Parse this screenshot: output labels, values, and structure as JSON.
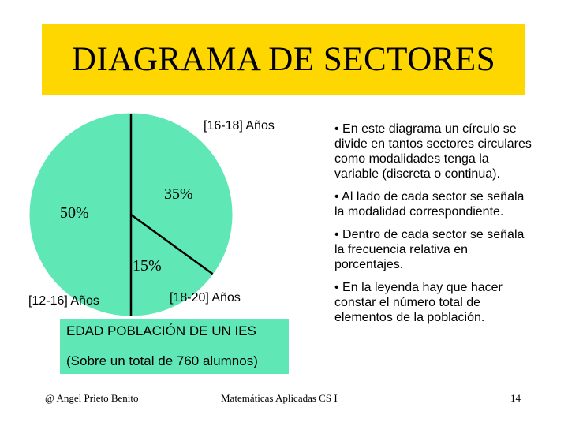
{
  "title": "DIAGRAMA DE SECTORES",
  "colors": {
    "title_bg": "#ffd700",
    "slice_fill": "#5fe8b5",
    "legend_bg": "#5fe8b5"
  },
  "chart_data": {
    "type": "pie",
    "title": "",
    "slices": [
      {
        "label": "[16-18] Años",
        "value": 35,
        "value_label": "35%"
      },
      {
        "label": "[18-20] Años",
        "value": 15,
        "value_label": "15%"
      },
      {
        "label": "[12-16] Años",
        "value": 50,
        "value_label": "50%"
      }
    ],
    "legend": {
      "line1": "EDAD POBLACIÓN DE UN IES",
      "line2": "(Sobre un total de 760 alumnos)"
    }
  },
  "bullets": [
    "• En este diagrama un círculo se divide en tantos sectores circulares como modalidades tenga la variable (discreta o continua).",
    "• Al lado de cada sector se señala la modalidad correspondiente.",
    "• Dentro de cada sector se señala la frecuencia relativa en porcentajes.",
    "• En la leyenda hay que hacer constar el número total de elementos de la población."
  ],
  "footer": {
    "author": "@   Angel Prieto Benito",
    "course": "Matemáticas Aplicadas CS I",
    "page": "14"
  }
}
